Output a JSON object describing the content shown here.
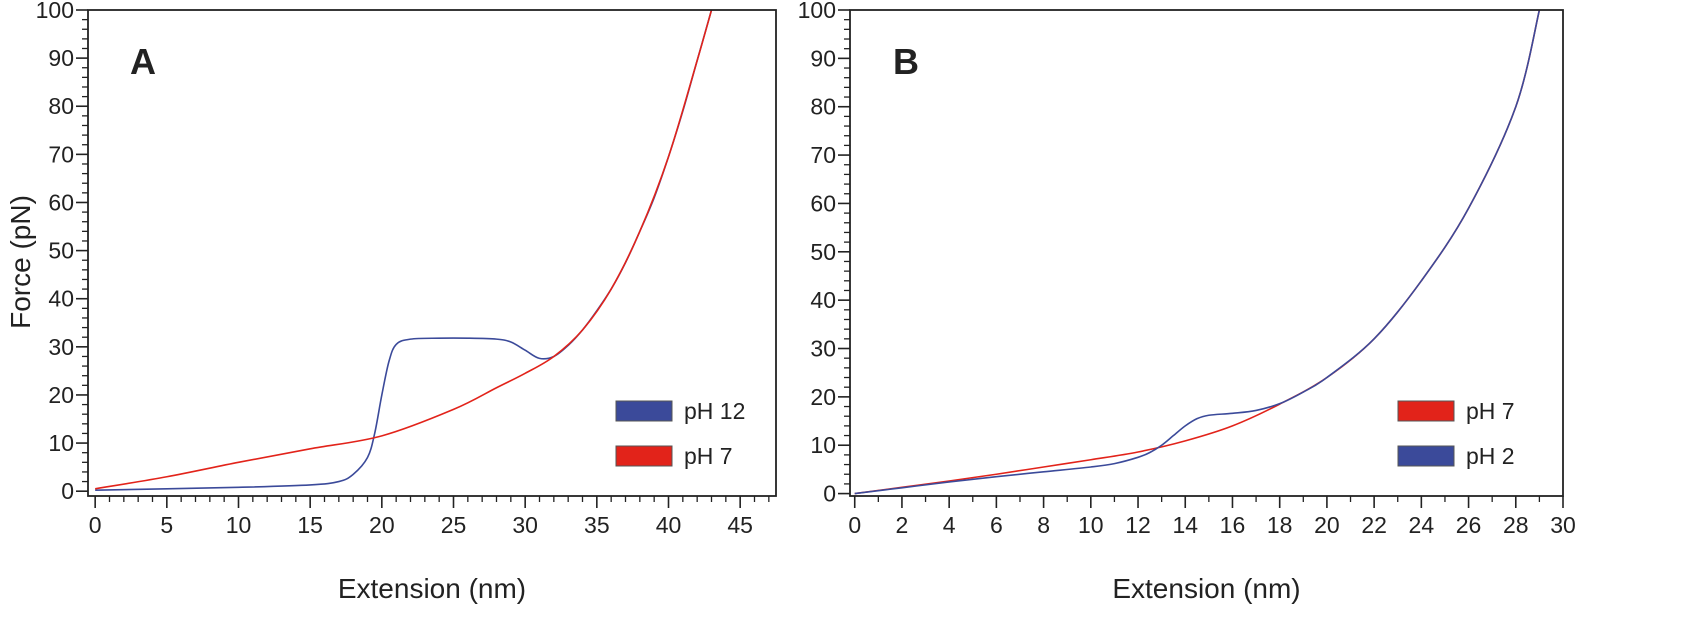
{
  "colors": {
    "blue_series": "#3B4A9A",
    "red_series": "#E2231A",
    "frame": "#222222",
    "background": "#ffffff"
  },
  "ylabel": "Force (pN)",
  "chart_data": [
    {
      "type": "line",
      "panel_label": "A",
      "xlabel": "Extension (nm)",
      "ylabel": "Force (pN)",
      "xlim": [
        -0.5,
        47.5
      ],
      "ylim": [
        -1,
        100
      ],
      "xticks": [
        0,
        5,
        10,
        15,
        20,
        25,
        30,
        35,
        40,
        45
      ],
      "yticks": [
        0,
        10,
        20,
        30,
        40,
        50,
        60,
        70,
        80,
        90,
        100
      ],
      "minor_x_step": 1,
      "minor_y_step": 2,
      "grid": false,
      "legend_position": "lower-right",
      "series": [
        {
          "name": "pH 12",
          "color": "#3B4A9A",
          "x": [
            0,
            5,
            10,
            15,
            17,
            18,
            19,
            19.5,
            20,
            20.5,
            21,
            22,
            24,
            26,
            28,
            29,
            30,
            31,
            32,
            33,
            34,
            35,
            36,
            37,
            38,
            39,
            40,
            41,
            42,
            43
          ],
          "y": [
            0.2,
            0.5,
            0.8,
            1.3,
            2,
            3.5,
            7,
            12,
            20,
            27,
            30.5,
            31.6,
            31.8,
            31.8,
            31.6,
            31,
            29.3,
            27.6,
            28,
            30.3,
            33.5,
            37.5,
            42,
            47.5,
            54,
            61,
            69.5,
            79,
            89.5,
            100
          ]
        },
        {
          "name": "pH 7",
          "color": "#E2231A",
          "x": [
            0,
            5,
            10,
            15,
            20,
            25,
            28,
            30,
            32,
            34,
            36,
            38,
            40,
            42,
            43
          ],
          "y": [
            0.5,
            3,
            6,
            8.8,
            11.5,
            17,
            21.5,
            24.5,
            28,
            33.5,
            42,
            54,
            69.5,
            89.5,
            100
          ]
        }
      ]
    },
    {
      "type": "line",
      "panel_label": "B",
      "xlabel": "Extension (nm)",
      "ylabel": "",
      "xlim": [
        -0.2,
        30
      ],
      "ylim": [
        -0.5,
        100
      ],
      "xticks": [
        0,
        2,
        4,
        6,
        8,
        10,
        12,
        14,
        16,
        18,
        20,
        22,
        24,
        26,
        28,
        30
      ],
      "yticks": [
        0,
        10,
        20,
        30,
        40,
        50,
        60,
        70,
        80,
        90,
        100
      ],
      "minor_x_step": 1,
      "minor_y_step": 2,
      "grid": false,
      "legend_position": "lower-right",
      "series": [
        {
          "name": "pH 7",
          "color": "#E2231A",
          "x": [
            0,
            2,
            4,
            6,
            8,
            10,
            12,
            14,
            16,
            18,
            20,
            22,
            24,
            26,
            28,
            29
          ],
          "y": [
            0,
            1.3,
            2.6,
            4,
            5.5,
            7,
            8.6,
            10.9,
            14,
            18.5,
            24,
            32,
            44,
            59,
            80,
            100
          ]
        },
        {
          "name": "pH 2",
          "color": "#3B4A9A",
          "x": [
            0,
            2,
            4,
            6,
            8,
            10,
            11,
            12,
            12.5,
            13,
            13.5,
            14,
            14.5,
            15,
            16,
            17,
            18,
            19,
            20,
            22,
            24,
            26,
            28,
            29
          ],
          "y": [
            0,
            1.2,
            2.4,
            3.5,
            4.5,
            5.5,
            6.2,
            7.5,
            8.5,
            10,
            12,
            14,
            15.5,
            16.2,
            16.6,
            17.2,
            18.6,
            21,
            24,
            32,
            44,
            59,
            80,
            100
          ]
        }
      ]
    }
  ]
}
